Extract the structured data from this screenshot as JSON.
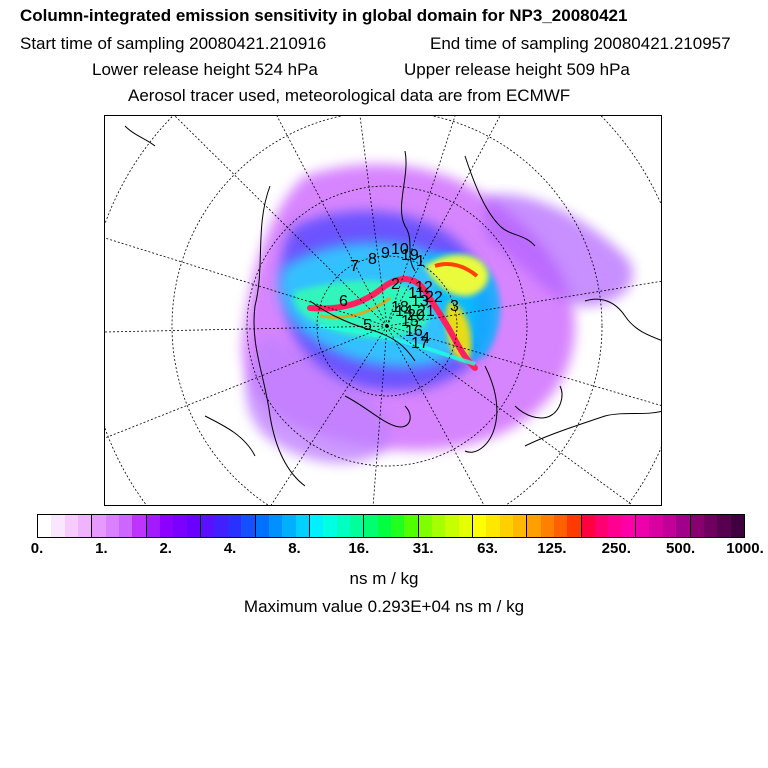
{
  "title": "Column-integrated emission sensitivity in global domain for NP3_20080421",
  "start_time": "Start time of sampling 20080421.210916",
  "end_time": "End time of sampling 20080421.210957",
  "lower_release": "Lower release height  524 hPa",
  "upper_release": "Upper release height  509 hPa",
  "tracer_info": "Aerosol tracer used, meteorological data are from ECMWF",
  "colorbar": {
    "ticks": [
      "0.",
      "1.",
      "2.",
      "4.",
      "8.",
      "16.",
      "31.",
      "63.",
      "125.",
      "250.",
      "500.",
      "1000."
    ],
    "colors": [
      "#ffffff",
      "#fbe6ff",
      "#f6ccff",
      "#f0b3ff",
      "#e699ff",
      "#d980ff",
      "#cc66ff",
      "#bf33ff",
      "#a31aff",
      "#8c00ff",
      "#7a00ff",
      "#6a00ff",
      "#5a10ff",
      "#4020ff",
      "#2a30ff",
      "#1450ff",
      "#0070ff",
      "#0090ff",
      "#00b0ff",
      "#00d0ff",
      "#00f0ff",
      "#00ffe0",
      "#00ffc0",
      "#00ff9a",
      "#00ff70",
      "#00ff40",
      "#20ff20",
      "#50ff00",
      "#80ff00",
      "#a6ff00",
      "#c8ff00",
      "#e6ff00",
      "#ffff00",
      "#ffe800",
      "#ffd000",
      "#ffb800",
      "#ffa000",
      "#ff8000",
      "#ff6000",
      "#ff3a00",
      "#ff0040",
      "#ff0070",
      "#ff0090",
      "#ff00a8",
      "#ee00aa",
      "#d800a0",
      "#c00096",
      "#a0008a",
      "#880070",
      "#700060",
      "#580050",
      "#400040"
    ],
    "unit": "ns m / kg"
  },
  "max_value": "Maximum value  0.293E+04 ns m / kg",
  "map": {
    "labels": [
      "1",
      "2",
      "3",
      "4",
      "5",
      "6",
      "7",
      "8",
      "9",
      "10",
      "11",
      "12",
      "13",
      "14",
      "15",
      "16",
      "17",
      "18",
      "19",
      "20",
      "21",
      "22"
    ]
  }
}
